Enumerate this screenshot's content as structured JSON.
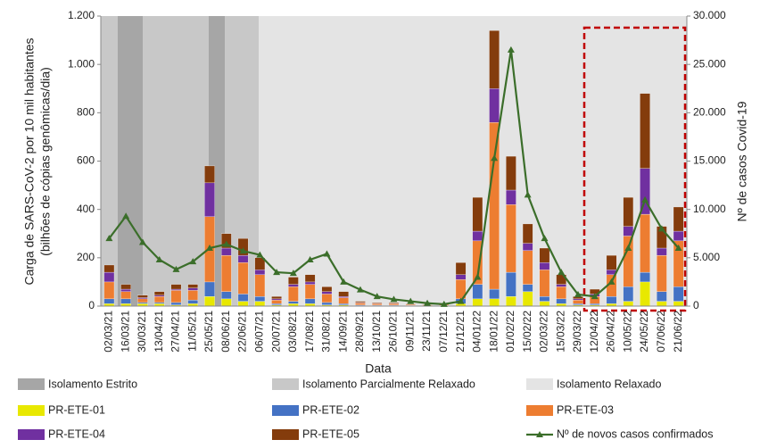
{
  "chart_data": {
    "type": "bar",
    "stacked": true,
    "x_label": "Data",
    "y_label": [
      "Carga de SARS-CoV-2 por 10 mil habitantes",
      "(bilhões de cópias genômicas/dia)"
    ],
    "y2_label": "Nº de casos Covid-19",
    "categories": [
      "02/03/21",
      "16/03/21",
      "30/03/21",
      "13/04/21",
      "27/04/21",
      "11/05/21",
      "25/05/21",
      "08/06/21",
      "22/06/21",
      "06/07/21",
      "20/07/21",
      "03/08/21",
      "17/08/21",
      "31/08/21",
      "14/09/21",
      "28/09/21",
      "13/10/21",
      "26/10/21",
      "09/11/21",
      "23/11/21",
      "07/12/21",
      "21/12/21",
      "04/01/22",
      "18/01/22",
      "01/02/22",
      "15/02/22",
      "02/03/22",
      "15/03/22",
      "29/03/22",
      "12/04/22",
      "26/04/22",
      "10/05/22",
      "24/05/22",
      "07/06/22",
      "21/06/22"
    ],
    "ylim": [
      0,
      1200
    ],
    "yticks": [
      0,
      200,
      400,
      600,
      800,
      {
        "value": 1000,
        "label": "1.000"
      },
      {
        "value": 1200,
        "label": "1.200"
      }
    ],
    "y2lim": [
      0,
      30000
    ],
    "y2ticks": [
      0,
      {
        "value": 5000,
        "label": "5.000"
      },
      {
        "value": 10000,
        "label": "10.000"
      },
      {
        "value": 15000,
        "label": "15.000"
      },
      {
        "value": 20000,
        "label": "20.000"
      },
      {
        "value": 25000,
        "label": "25.000"
      },
      {
        "value": 30000,
        "label": "30.000"
      }
    ],
    "regions": [
      {
        "name": "Isolamento Estrito",
        "color": "#a6a6a6"
      },
      {
        "name": "Isolamento Parcialmente Relaxado",
        "color": "#c8c8c8"
      },
      {
        "name": "Isolamento Relaxado",
        "color": "#e4e4e4"
      }
    ],
    "series": [
      {
        "name": "PR-ETE-01",
        "color": "#e8e800",
        "values": [
          10,
          10,
          10,
          10,
          5,
          10,
          40,
          30,
          20,
          20,
          5,
          10,
          10,
          5,
          5,
          2,
          2,
          2,
          1,
          1,
          1,
          10,
          30,
          30,
          40,
          60,
          20,
          10,
          5,
          5,
          10,
          20,
          100,
          20,
          20
        ]
      },
      {
        "name": "PR-ETE-02",
        "color": "#4472c4",
        "values": [
          20,
          20,
          5,
          5,
          10,
          15,
          60,
          30,
          30,
          20,
          5,
          10,
          20,
          10,
          5,
          3,
          2,
          2,
          2,
          1,
          2,
          20,
          60,
          40,
          100,
          30,
          20,
          20,
          5,
          5,
          30,
          60,
          40,
          40,
          60
        ]
      },
      {
        "name": "PR-ETE-03",
        "color": "#ed7d31",
        "values": [
          70,
          30,
          15,
          25,
          50,
          40,
          270,
          150,
          130,
          90,
          15,
          60,
          60,
          35,
          25,
          8,
          6,
          6,
          4,
          3,
          4,
          80,
          180,
          690,
          280,
          140,
          110,
          50,
          15,
          30,
          90,
          210,
          240,
          150,
          190
        ]
      },
      {
        "name": "PR-ETE-04",
        "color": "#7030a0",
        "values": [
          40,
          10,
          5,
          5,
          5,
          10,
          140,
          30,
          30,
          20,
          5,
          10,
          10,
          10,
          5,
          2,
          2,
          2,
          1,
          1,
          1,
          20,
          40,
          140,
          60,
          30,
          30,
          10,
          5,
          10,
          20,
          40,
          190,
          30,
          40
        ]
      },
      {
        "name": "PR-ETE-05",
        "color": "#843c0c",
        "values": [
          30,
          20,
          10,
          15,
          20,
          15,
          70,
          60,
          70,
          50,
          10,
          30,
          30,
          20,
          20,
          5,
          3,
          3,
          2,
          2,
          2,
          50,
          140,
          240,
          140,
          80,
          60,
          40,
          10,
          20,
          60,
          120,
          310,
          90,
          100
        ]
      },
      {
        "name": "Nº de novos casos confirmados",
        "type": "line",
        "axis": "y2",
        "color": "#3b6e2a",
        "values": [
          7000,
          9300,
          6600,
          4800,
          3800,
          4600,
          6000,
          6400,
          5700,
          5300,
          3500,
          3400,
          4800,
          5400,
          2500,
          1700,
          1000,
          700,
          500,
          300,
          200,
          500,
          3000,
          15300,
          26500,
          11500,
          7000,
          3500,
          1200,
          1000,
          2500,
          6000,
          11000,
          8000,
          6000
        ]
      }
    ]
  }
}
